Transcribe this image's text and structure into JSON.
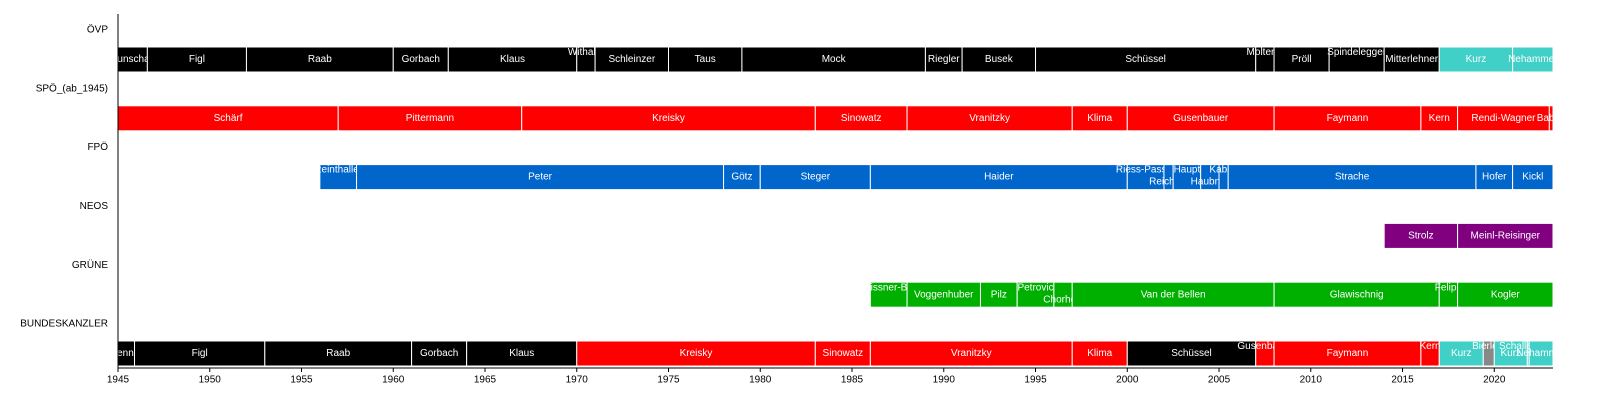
{
  "chart_data": {
    "type": "timeline",
    "xlim": [
      1945,
      2023.2
    ],
    "xticks": [
      1945,
      1950,
      1955,
      1960,
      1965,
      1970,
      1975,
      1980,
      1985,
      1990,
      1995,
      2000,
      2005,
      2010,
      2015,
      2020
    ],
    "rows": [
      {
        "name": "ÖVP",
        "color": "#000000",
        "segments": [
          {
            "label": "Kunschak",
            "start": 1945,
            "end": 1946.6
          },
          {
            "label": "Figl",
            "start": 1946.6,
            "end": 1952
          },
          {
            "label": "Raab",
            "start": 1952,
            "end": 1960
          },
          {
            "label": "Gorbach",
            "start": 1960,
            "end": 1963
          },
          {
            "label": "Klaus",
            "start": 1963,
            "end": 1970
          },
          {
            "label": "Withalm",
            "start": 1970,
            "end": 1971
          },
          {
            "label": "Schleinzer",
            "start": 1971,
            "end": 1975
          },
          {
            "label": "Taus",
            "start": 1975,
            "end": 1979
          },
          {
            "label": "Mock",
            "start": 1979,
            "end": 1989
          },
          {
            "label": "Riegler",
            "start": 1989,
            "end": 1991
          },
          {
            "label": "Busek",
            "start": 1991,
            "end": 1995
          },
          {
            "label": "Schüssel",
            "start": 1995,
            "end": 2007
          },
          {
            "label": "Molterer",
            "start": 2007,
            "end": 2008
          },
          {
            "label": "Pröll",
            "start": 2008,
            "end": 2011
          },
          {
            "label": "Spindelegger",
            "start": 2011,
            "end": 2014
          },
          {
            "label": "Mitterlehner",
            "start": 2014,
            "end": 2017
          },
          {
            "label": "Kurz",
            "start": 2017,
            "end": 2021,
            "color": "#40d0c8"
          },
          {
            "label": "Nehammer",
            "start": 2021,
            "end": 2023.2,
            "color": "#40d0c8"
          }
        ]
      },
      {
        "name": "SPÖ_(ab_1945)",
        "color": "#ff0000",
        "segments": [
          {
            "label": "Schärf",
            "start": 1945,
            "end": 1957
          },
          {
            "label": "Pittermann",
            "start": 1957,
            "end": 1967
          },
          {
            "label": "Kreisky",
            "start": 1967,
            "end": 1983
          },
          {
            "label": "Sinowatz",
            "start": 1983,
            "end": 1988
          },
          {
            "label": "Vranitzky",
            "start": 1988,
            "end": 1997
          },
          {
            "label": "Klima",
            "start": 1997,
            "end": 2000
          },
          {
            "label": "Gusenbauer",
            "start": 2000,
            "end": 2008
          },
          {
            "label": "Faymann",
            "start": 2008,
            "end": 2016
          },
          {
            "label": "Kern",
            "start": 2016,
            "end": 2018
          },
          {
            "label": "Rendi-Wagner",
            "start": 2018,
            "end": 2023
          },
          {
            "label": "Babler",
            "start": 2023,
            "end": 2023.2
          }
        ]
      },
      {
        "name": "FPÖ",
        "color": "#0066cc",
        "segments": [
          {
            "label": "Reinthaller",
            "start": 1956,
            "end": 1958
          },
          {
            "label": "Peter",
            "start": 1958,
            "end": 1978
          },
          {
            "label": "Götz",
            "start": 1978,
            "end": 1980
          },
          {
            "label": "Steger",
            "start": 1980,
            "end": 1986
          },
          {
            "label": "Haider",
            "start": 1986,
            "end": 2000
          },
          {
            "label": "Riess-Passer",
            "start": 2000,
            "end": 2002
          },
          {
            "label": "Reichold",
            "start": 2002,
            "end": 2002.5
          },
          {
            "label": "Haupt",
            "start": 2002.5,
            "end": 2004
          },
          {
            "label": "Haubner",
            "start": 2004,
            "end": 2005
          },
          {
            "label": "Kabas",
            "start": 2005,
            "end": 2005.5
          },
          {
            "label": "Strache",
            "start": 2005.5,
            "end": 2019
          },
          {
            "label": "Hofer",
            "start": 2019,
            "end": 2021
          },
          {
            "label": "Kickl",
            "start": 2021,
            "end": 2023.2
          }
        ]
      },
      {
        "name": "NEOS",
        "color": "#800080",
        "segments": [
          {
            "label": "Strolz",
            "start": 2014,
            "end": 2018
          },
          {
            "label": "Meinl-Reisinger",
            "start": 2018,
            "end": 2023.2
          }
        ]
      },
      {
        "name": "GRÜNE",
        "color": "#00b000",
        "segments": [
          {
            "label": "Meissner-Blau",
            "start": 1986,
            "end": 1988
          },
          {
            "label": "Voggenhuber",
            "start": 1988,
            "end": 1992
          },
          {
            "label": "Pilz",
            "start": 1992,
            "end": 1994
          },
          {
            "label": "Petrovic",
            "start": 1994,
            "end": 1996
          },
          {
            "label": "Chorherr",
            "start": 1996,
            "end": 1997
          },
          {
            "label": "Van der Bellen",
            "start": 1997,
            "end": 2008
          },
          {
            "label": "Glawischnig",
            "start": 2008,
            "end": 2017
          },
          {
            "label": "Felipe",
            "start": 2017,
            "end": 2018
          },
          {
            "label": "Kogler",
            "start": 2018,
            "end": 2023.2
          }
        ]
      },
      {
        "name": "BUNDESKANZLER",
        "color": "#000000",
        "segments": [
          {
            "label": "Renner",
            "start": 1945,
            "end": 1945.9
          },
          {
            "label": "Figl",
            "start": 1945.9,
            "end": 1953
          },
          {
            "label": "Raab",
            "start": 1953,
            "end": 1961
          },
          {
            "label": "Gorbach",
            "start": 1961,
            "end": 1964
          },
          {
            "label": "Klaus",
            "start": 1964,
            "end": 1970
          },
          {
            "label": "Kreisky",
            "start": 1970,
            "end": 1983,
            "color": "#ff0000"
          },
          {
            "label": "Sinowatz",
            "start": 1983,
            "end": 1986,
            "color": "#ff0000"
          },
          {
            "label": "Vranitzky",
            "start": 1986,
            "end": 1997,
            "color": "#ff0000"
          },
          {
            "label": "Klima",
            "start": 1997,
            "end": 2000,
            "color": "#ff0000"
          },
          {
            "label": "Schüssel",
            "start": 2000,
            "end": 2007
          },
          {
            "label": "Gusenbauer",
            "start": 2007,
            "end": 2008,
            "color": "#ff0000"
          },
          {
            "label": "Faymann",
            "start": 2008,
            "end": 2016,
            "color": "#ff0000"
          },
          {
            "label": "Kern",
            "start": 2016,
            "end": 2017,
            "color": "#ff0000"
          },
          {
            "label": "Kurz",
            "start": 2017,
            "end": 2019.4,
            "color": "#40d0c8"
          },
          {
            "label": "Bierlein",
            "start": 2019.4,
            "end": 2020,
            "color": "#888888"
          },
          {
            "label": "Kurz",
            "start": 2020,
            "end": 2021.8,
            "color": "#40d0c8"
          },
          {
            "label": "Schallenberg",
            "start": 2021.8,
            "end": 2021.9,
            "color": "#40d0c8"
          },
          {
            "label": "Nehammer",
            "start": 2021.9,
            "end": 2023.2,
            "color": "#40d0c8"
          }
        ]
      }
    ]
  }
}
